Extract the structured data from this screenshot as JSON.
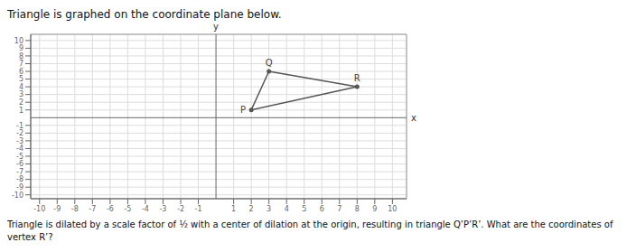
{
  "chart_data": {
    "type": "line",
    "title": "Triangle is graphed on the coordinate plane below.",
    "subtitle": "Triangle is dilated by a scale factor of ½ with a center of dilation at the origin, resulting in triangle Q’P’R’. What are the coordinates of vertex R’?",
    "x_label": "x",
    "y_label": "y",
    "x": [
      3,
      2,
      8
    ],
    "values": [
      6,
      1,
      4
    ],
    "color": "#555555",
    "annotations": [
      {
        "text": "Q",
        "x": 3,
        "y": 6
      },
      {
        "text": "P",
        "x": 2,
        "y": 1
      },
      {
        "text": "R",
        "x": 8,
        "y": 4
      }
    ],
    "xlim": [
      -10.5,
      10.8
    ],
    "ylim": [
      -10.5,
      10.8
    ],
    "xticks": [
      -10,
      -9,
      -8,
      -7,
      -6,
      -5,
      -4,
      -3,
      -2,
      -1,
      1,
      2,
      3,
      4,
      5,
      6,
      7,
      8,
      9,
      10
    ],
    "yticks": [
      -10,
      -9,
      -8,
      -7,
      -6,
      -5,
      -4,
      -3,
      -2,
      -1,
      1,
      2,
      3,
      4,
      5,
      6,
      7,
      8,
      9,
      10
    ],
    "grid": true
  }
}
